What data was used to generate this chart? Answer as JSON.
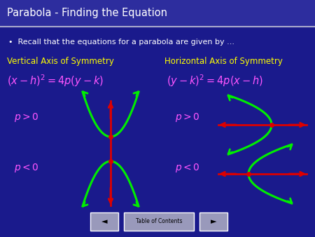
{
  "bg_color": "#1a1a8c",
  "title_text": "Parabola - Finding the Equation",
  "title_color": "#ffffff",
  "title_bg_color": "#2d2d9e",
  "title_line_color": "#aaaacc",
  "bullet_text": "Recall that the equations for a parabola are given by ...",
  "bullet_color": "#ffffff",
  "left_header": "Vertical Axis of Symmetry",
  "right_header": "Horizontal Axis of Symmetry",
  "header_color": "#ffff00",
  "eq_color": "#ff55ff",
  "p_label_color": "#ff55ff",
  "green_color": "#00ee00",
  "red_color": "#dd0000",
  "nav_bg": "#9999bb",
  "figsize": [
    4.5,
    3.38
  ],
  "dpi": 100
}
